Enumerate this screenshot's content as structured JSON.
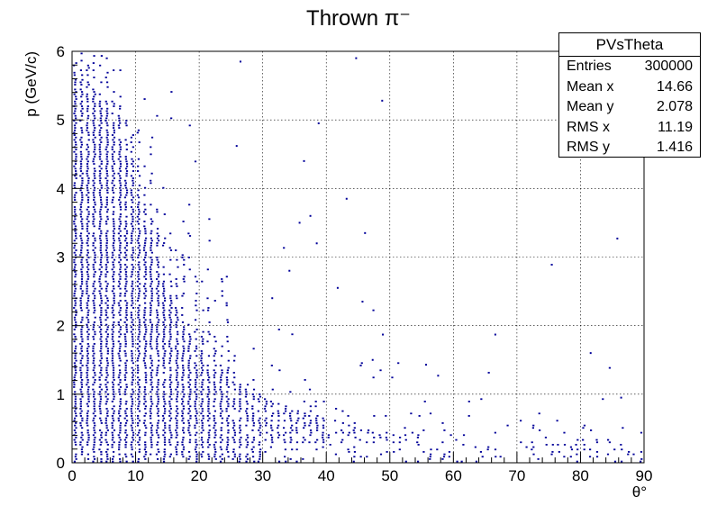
{
  "chart_data": {
    "type": "scatter",
    "title": "Thrown π⁻",
    "xlabel": "θ°",
    "ylabel": "p (GeV/c)",
    "xlim": [
      0,
      90
    ],
    "ylim": [
      0,
      6
    ],
    "xticks": [
      "0",
      "10",
      "20",
      "30",
      "40",
      "50",
      "60",
      "70",
      "80",
      "90"
    ],
    "yticks": [
      "0",
      "1",
      "2",
      "3",
      "4",
      "5",
      "6"
    ],
    "grid": true,
    "marker_color": "#000099",
    "density_ridge": {
      "x": [
        0,
        2,
        4,
        6,
        8,
        10,
        12,
        14,
        16,
        18,
        20,
        22,
        25,
        30,
        35,
        40,
        45,
        50,
        60,
        70,
        80,
        90
      ],
      "p_max": [
        5.6,
        5.6,
        5.4,
        5.1,
        4.6,
        4.0,
        3.3,
        2.8,
        2.3,
        1.9,
        1.6,
        1.4,
        1.2,
        0.95,
        0.8,
        0.65,
        0.55,
        0.45,
        0.35,
        0.3,
        0.25,
        0.2
      ],
      "p_min": [
        0.25,
        0.25,
        0.25,
        0.25,
        0.25,
        0.25,
        0.25,
        0.25,
        0.25,
        0.25,
        0.25,
        0.3,
        0.3,
        0.3,
        0.3,
        0.3,
        0.3,
        0.3,
        0.15,
        0.1,
        0.1,
        0.1
      ]
    },
    "outliers": [
      [
        26.5,
        5.85
      ],
      [
        44.7,
        5.9
      ],
      [
        48.8,
        5.28
      ],
      [
        38.8,
        4.95
      ],
      [
        25.9,
        4.62
      ],
      [
        36.5,
        4.4
      ],
      [
        43.2,
        3.85
      ],
      [
        37.5,
        3.6
      ],
      [
        35.8,
        3.5
      ],
      [
        46.1,
        3.35
      ],
      [
        41.8,
        2.55
      ],
      [
        45.7,
        2.35
      ],
      [
        85.8,
        3.27
      ],
      [
        81.6,
        1.6
      ],
      [
        66.6,
        1.87
      ],
      [
        48.9,
        1.87
      ],
      [
        55.7,
        1.43
      ],
      [
        47.3,
        1.5
      ],
      [
        57.6,
        1.27
      ],
      [
        86.4,
        0.95
      ],
      [
        38.5,
        3.2
      ],
      [
        34.2,
        2.8
      ],
      [
        31.5,
        2.4
      ]
    ]
  },
  "stats": {
    "title": "PVsTheta",
    "rows": [
      {
        "label": "Entries",
        "value": "300000"
      },
      {
        "label": "Mean x",
        "value": "14.66"
      },
      {
        "label": "Mean y",
        "value": "2.078"
      },
      {
        "label": "RMS x",
        "value": "11.19"
      },
      {
        "label": "RMS y",
        "value": "1.416"
      }
    ]
  }
}
